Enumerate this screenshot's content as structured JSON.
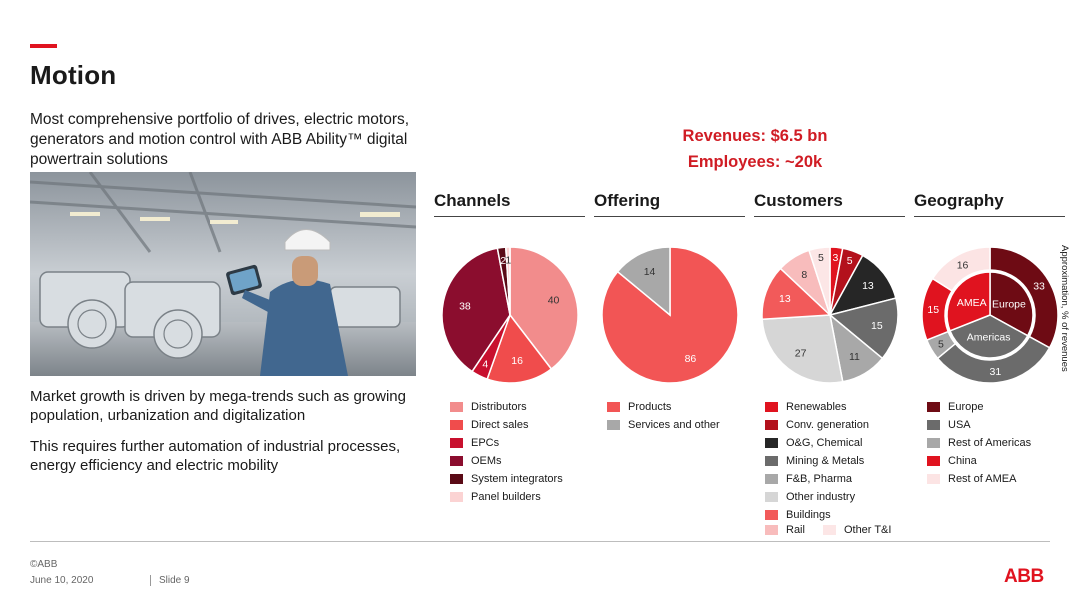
{
  "slide": {
    "title": "Motion",
    "intro": "Most comprehensive portfolio of drives, electric motors, generators and motion control with ABB Ability™ digital powertrain solutions",
    "paragraph1": "Market growth is driven by mega-trends such as growing population, urbanization and digitalization",
    "paragraph2": "This requires further automation of industrial processes, energy efficiency and electric mobility",
    "revenues": "Revenues: $6.5 bn",
    "employees": "Employees: ~20k",
    "side_note": "Approximation, % of revenues",
    "accent_color": "#e0131f"
  },
  "footer": {
    "copyright": "©ABB",
    "date": "June 10, 2020",
    "slide_label": "Slide 9",
    "logo": "ABB"
  },
  "chart_data": [
    {
      "type": "pie",
      "title": "Channels",
      "categories": [
        "Distributors",
        "Direct sales",
        "EPCs",
        "OEMs",
        "System integrators",
        "Panel builders"
      ],
      "values": [
        40,
        16,
        4,
        38,
        2,
        1
      ],
      "colors": [
        "#f28c8c",
        "#f04c4c",
        "#c8102e",
        "#8b0d2e",
        "#5a0a16",
        "#fbd3d3"
      ]
    },
    {
      "type": "pie",
      "title": "Offering",
      "categories": [
        "Products",
        "Services and other"
      ],
      "values": [
        86,
        14
      ],
      "colors": [
        "#f25555",
        "#a8a8a8"
      ]
    },
    {
      "type": "pie",
      "title": "Customers",
      "categories": [
        "Renewables",
        "Conv. generation",
        "O&G, Chemical",
        "Mining & Metals",
        "F&B, Pharma",
        "Other industry",
        "Buildings",
        "Rail",
        "Other T&I"
      ],
      "values": [
        3,
        5,
        13,
        15,
        11,
        27,
        13,
        8,
        5
      ],
      "colors": [
        "#e0131f",
        "#b3111c",
        "#262626",
        "#6b6b6b",
        "#a8a8a8",
        "#d6d6d6",
        "#f25a5a",
        "#f8bcbc",
        "#fce6e6"
      ]
    },
    {
      "type": "pie",
      "title": "Geography",
      "categories": [
        "Europe",
        "USA",
        "Rest of Americas",
        "China",
        "Rest of AMEA"
      ],
      "values": [
        33,
        31,
        5,
        15,
        16
      ],
      "colors": [
        "#6e0b14",
        "#6b6b6b",
        "#a8a8a8",
        "#e0131f",
        "#fce4e4"
      ],
      "inner_regions": [
        "Europe",
        "Americas",
        "AMEA"
      ]
    }
  ]
}
